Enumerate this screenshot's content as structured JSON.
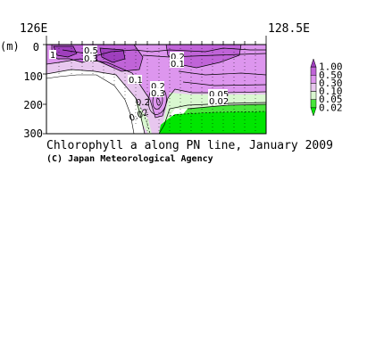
{
  "chart_data": {
    "type": "contour",
    "title": "Chlorophyll a along PN line, January 2009",
    "credit": "(C) Japan Meteorological Agency",
    "x_ticks": [
      "126E",
      "128.5E"
    ],
    "xlim": [
      "126E",
      "128.5E"
    ],
    "y_unit": "(m)",
    "y_ticks": [
      0,
      100,
      200,
      300
    ],
    "ylim": [
      0,
      300
    ],
    "y_inverted": true,
    "legend": {
      "position": "right",
      "levels": [
        "1.00",
        "0.50",
        "0.30",
        "0.10",
        "0.05",
        "0.02"
      ],
      "colors": [
        "#9f3fbd",
        "#c064d8",
        "#dd96ee",
        "#e8c7ef",
        "#d9f7d0",
        "#48e63a",
        "#00e600"
      ]
    },
    "contour_labels": [
      "1",
      "0.5",
      "0.3",
      "0.2",
      "0.1",
      "0.1",
      "0.2",
      "0.3",
      "0.2",
      "0.05",
      "0.02",
      "0.02"
    ]
  }
}
